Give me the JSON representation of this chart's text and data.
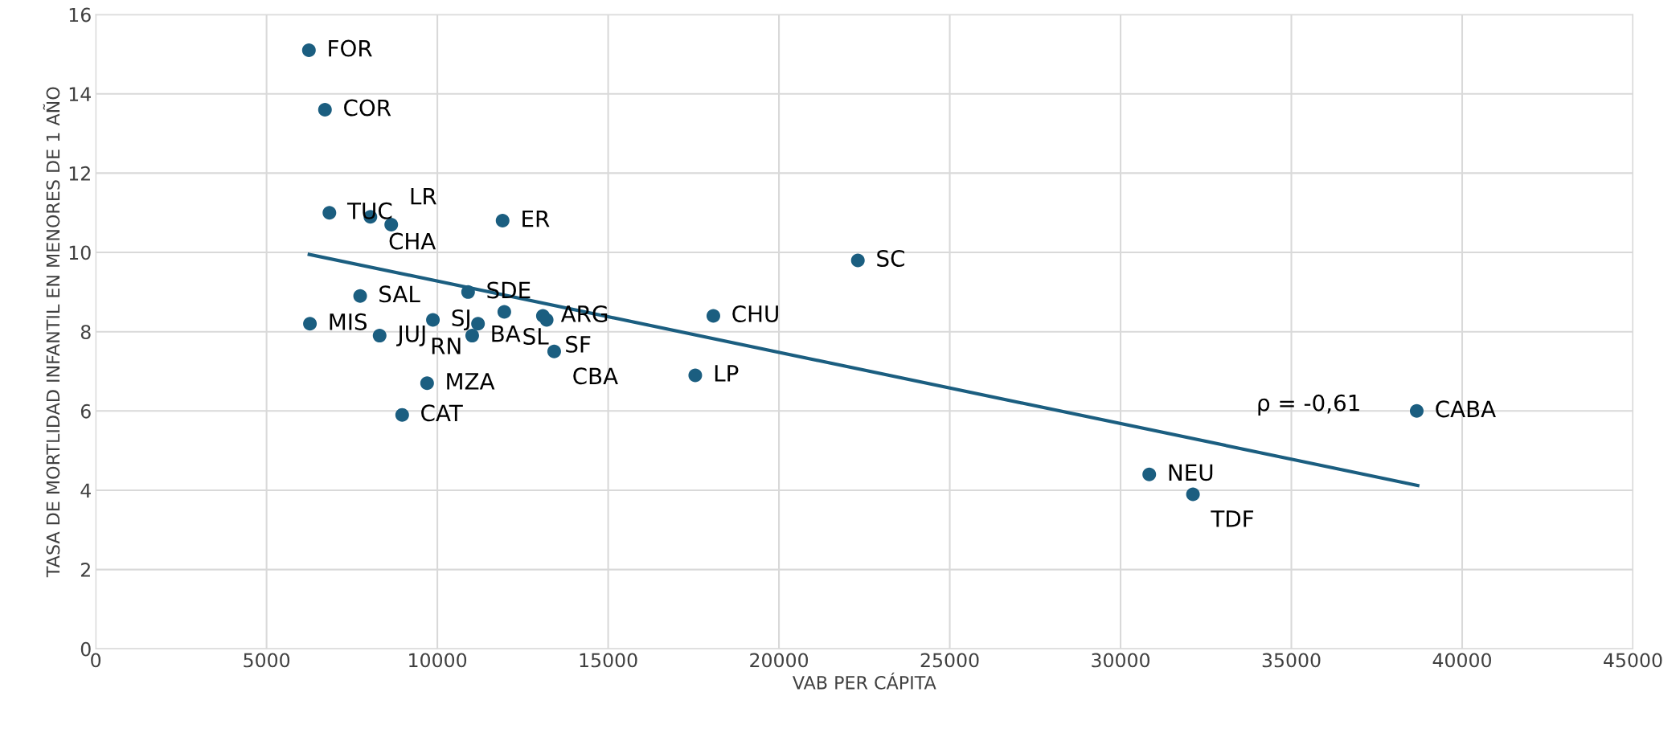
{
  "chart_data": {
    "type": "scatter",
    "xlabel": "VAB PER CÁPITA",
    "ylabel": "TASA DE MORTLIDAD INFANTIL EN MENORES DE 1 AÑO",
    "xlim": [
      0,
      45000
    ],
    "xticks": [
      0,
      5000,
      10000,
      15000,
      20000,
      25000,
      30000,
      35000,
      40000,
      45000
    ],
    "ylim": [
      0,
      16
    ],
    "yticks": [
      0,
      2,
      4,
      6,
      8,
      10,
      12,
      14,
      16
    ],
    "grid": true,
    "marker": "circle",
    "series": [
      {
        "color": "#1b5e80",
        "x": [
          6240,
          6710,
          6840,
          8040,
          8650,
          11910,
          7740,
          6270,
          8310,
          9870,
          10900,
          11960,
          13090,
          13200,
          11190,
          11020,
          13420,
          9700,
          8970,
          22310,
          18080,
          17550,
          38670,
          30840,
          32120
        ],
        "values": [
          15.1,
          13.6,
          11.0,
          10.9,
          10.7,
          10.8,
          8.9,
          8.2,
          7.9,
          8.3,
          9.0,
          8.5,
          8.4,
          8.3,
          8.2,
          7.9,
          7.5,
          6.7,
          5.9,
          9.8,
          8.4,
          6.9,
          6.0,
          4.4,
          3.9
        ]
      },
      {
        "type": "line",
        "marker": "none",
        "color": "#1b5e80",
        "x": [
          6250,
          38700
        ],
        "values": [
          9.95,
          4.12
        ]
      }
    ],
    "annotations": [
      {
        "text": "FOR",
        "x": 6240,
        "y": 15.1
      },
      {
        "text": "COR",
        "x": 6710,
        "y": 13.6
      },
      {
        "text": "TUC",
        "x": 6840,
        "y": 11.0
      },
      {
        "text": "CHA",
        "x": 8040,
        "y": 10.9
      },
      {
        "text": "LR",
        "x": 8650,
        "y": 10.7
      },
      {
        "text": "ER",
        "x": 11910,
        "y": 10.8
      },
      {
        "text": "SAL",
        "x": 7740,
        "y": 8.9
      },
      {
        "text": "MIS",
        "x": 6270,
        "y": 8.2
      },
      {
        "text": "JUJ",
        "x": 8310,
        "y": 7.9
      },
      {
        "text": "SJ",
        "x": 9870,
        "y": 8.3
      },
      {
        "text": "SDE",
        "x": 10900,
        "y": 9.0
      },
      {
        "text": "SL",
        "x": 11960,
        "y": 8.5
      },
      {
        "text": "ARG",
        "x": 13090,
        "y": 8.4
      },
      {
        "text": "SF",
        "x": 13200,
        "y": 8.3
      },
      {
        "text": "RN",
        "x": 11190,
        "y": 8.2
      },
      {
        "text": "BA",
        "x": 11020,
        "y": 7.9
      },
      {
        "text": "CBA",
        "x": 13420,
        "y": 7.5
      },
      {
        "text": "MZA",
        "x": 9700,
        "y": 6.7
      },
      {
        "text": "CAT",
        "x": 8970,
        "y": 5.9
      },
      {
        "text": "SC",
        "x": 22310,
        "y": 9.8
      },
      {
        "text": "CHU",
        "x": 18080,
        "y": 8.4
      },
      {
        "text": "LP",
        "x": 17550,
        "y": 6.9
      },
      {
        "text": "CABA",
        "x": 38670,
        "y": 6.0
      },
      {
        "text": "NEU",
        "x": 30840,
        "y": 4.4
      },
      {
        "text": "TDF",
        "x": 32120,
        "y": 3.9
      },
      "ρ = -0,61"
    ]
  }
}
